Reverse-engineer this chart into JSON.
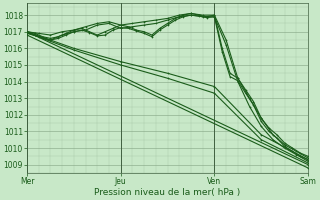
{
  "bg_color": "#c8e8c8",
  "plot_bg_color": "#c8e8c8",
  "grid_major_color": "#b0c8b0",
  "grid_minor_color": "#c0d8c0",
  "line_color": "#1a5c1a",
  "xlim": [
    0,
    72
  ],
  "ylim": [
    1008.5,
    1018.7
  ],
  "yticks": [
    1009,
    1010,
    1011,
    1012,
    1013,
    1014,
    1015,
    1016,
    1017,
    1018
  ],
  "xtick_positions": [
    0,
    24,
    48,
    72
  ],
  "xtick_labels": [
    "Mer",
    "Jeu",
    "Ven",
    "Sam"
  ],
  "xlabel": "Pression niveau de la mer( hPa )",
  "lines": [
    {
      "x": [
        0,
        3,
        6,
        9,
        12,
        15,
        18,
        21,
        24,
        27,
        30,
        33,
        36,
        39,
        42,
        45,
        48,
        51,
        54,
        57,
        60,
        63,
        66,
        69,
        72
      ],
      "y": [
        1017.0,
        1016.9,
        1016.8,
        1017.0,
        1017.1,
        1017.3,
        1017.5,
        1017.6,
        1017.4,
        1017.5,
        1017.6,
        1017.7,
        1017.8,
        1018.0,
        1018.1,
        1018.0,
        1018.0,
        1016.5,
        1014.2,
        1013.0,
        1011.8,
        1010.8,
        1010.2,
        1009.8,
        1009.4
      ]
    },
    {
      "x": [
        0,
        3,
        6,
        9,
        12,
        15,
        18,
        21,
        24,
        27,
        30,
        33,
        36,
        39,
        42,
        45,
        48,
        51,
        54,
        57,
        60,
        63,
        66,
        69,
        72
      ],
      "y": [
        1016.9,
        1016.7,
        1016.5,
        1016.8,
        1017.0,
        1017.1,
        1017.4,
        1017.5,
        1017.2,
        1017.3,
        1017.4,
        1017.5,
        1017.7,
        1017.9,
        1018.0,
        1017.9,
        1017.9,
        1016.2,
        1014.0,
        1012.5,
        1011.3,
        1010.5,
        1010.0,
        1009.6,
        1009.2
      ]
    },
    {
      "x": [
        0,
        2,
        4,
        6,
        8,
        10,
        12,
        14,
        16,
        18,
        20,
        22,
        24,
        26,
        28,
        30,
        32,
        34,
        36,
        38,
        40,
        42,
        44,
        46,
        48,
        50,
        52,
        54,
        56,
        58,
        60,
        62,
        64,
        66,
        68,
        70,
        72
      ],
      "y": [
        1017.0,
        1016.9,
        1016.7,
        1016.6,
        1016.7,
        1016.9,
        1017.1,
        1017.2,
        1017.0,
        1016.8,
        1017.0,
        1017.2,
        1017.4,
        1017.3,
        1017.1,
        1017.0,
        1016.8,
        1017.2,
        1017.5,
        1017.8,
        1018.0,
        1018.1,
        1018.0,
        1017.9,
        1018.0,
        1016.0,
        1014.5,
        1014.2,
        1013.5,
        1012.8,
        1011.8,
        1011.2,
        1010.8,
        1010.3,
        1010.0,
        1009.7,
        1009.5
      ]
    },
    {
      "x": [
        0,
        2,
        4,
        6,
        8,
        10,
        12,
        14,
        16,
        18,
        20,
        22,
        24,
        26,
        28,
        30,
        32,
        34,
        36,
        38,
        40,
        42,
        44,
        46,
        48,
        50,
        52,
        54,
        56,
        58,
        60,
        62,
        64,
        66,
        68,
        70,
        72
      ],
      "y": [
        1016.95,
        1016.8,
        1016.6,
        1016.5,
        1016.6,
        1016.8,
        1017.0,
        1017.1,
        1016.95,
        1016.75,
        1016.8,
        1017.1,
        1017.25,
        1017.2,
        1017.05,
        1016.9,
        1016.7,
        1017.1,
        1017.4,
        1017.7,
        1017.9,
        1018.0,
        1017.95,
        1017.85,
        1017.9,
        1015.8,
        1014.3,
        1014.05,
        1013.3,
        1012.6,
        1011.6,
        1011.0,
        1010.6,
        1010.1,
        1009.8,
        1009.5,
        1009.3
      ]
    },
    {
      "x": [
        0,
        72
      ],
      "y": [
        1017.0,
        1009.0
      ]
    },
    {
      "x": [
        0,
        72
      ],
      "y": [
        1016.8,
        1008.8
      ]
    },
    {
      "x": [
        0,
        12,
        24,
        36,
        48,
        60,
        72
      ],
      "y": [
        1016.95,
        1015.9,
        1015.0,
        1014.2,
        1013.3,
        1010.5,
        1009.1
      ]
    },
    {
      "x": [
        0,
        12,
        24,
        36,
        48,
        60,
        72
      ],
      "y": [
        1017.0,
        1016.0,
        1015.2,
        1014.5,
        1013.7,
        1010.8,
        1009.3
      ]
    }
  ],
  "vline_positions": [
    0,
    24,
    48,
    72
  ]
}
